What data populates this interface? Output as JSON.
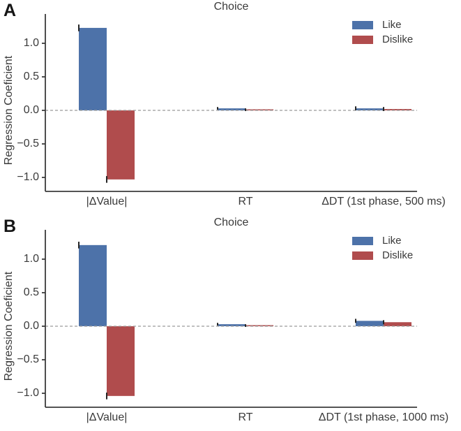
{
  "figure": {
    "background_color": "#ffffff",
    "text_color": "#3a3a3a",
    "axis_color": "#3b3b3b",
    "zero_line_color": "#9b9b9b",
    "error_bar_color": "#262626",
    "legend": {
      "position": "upper right",
      "frame": false,
      "items": [
        {
          "label": "Like",
          "color": "#4d72a9"
        },
        {
          "label": "Dislike",
          "color": "#b04c4d"
        }
      ]
    }
  },
  "chart_data": [
    {
      "type": "bar",
      "panel_label": "A",
      "title": "Choice",
      "xlabel": "",
      "ylabel": "Regression Coeficient",
      "ylim": [
        -1.2,
        1.45
      ],
      "yticks": [
        1.0,
        0.5,
        0.0,
        -0.5,
        -1.0
      ],
      "ytick_labels": [
        "1.0",
        "0.5",
        "0.0",
        "−0.5",
        "−1.0"
      ],
      "categories": [
        "|ΔValue|",
        "RT",
        "ΔDT (1st phase, 500 ms)"
      ],
      "zero_line_dashed": true,
      "grid": false,
      "series": [
        {
          "name": "Like",
          "color": "#4d72a9",
          "values": [
            1.23,
            0.03,
            0.03
          ],
          "errors": [
            0.05,
            0.02,
            0.03
          ]
        },
        {
          "name": "Dislike",
          "color": "#b04c4d",
          "values": [
            -1.03,
            0.01,
            0.02
          ],
          "errors": [
            0.05,
            0.02,
            0.03
          ]
        }
      ]
    },
    {
      "type": "bar",
      "panel_label": "B",
      "title": "Choice",
      "xlabel": "",
      "ylabel": "Regression Coeficient",
      "ylim": [
        -1.2,
        1.45
      ],
      "yticks": [
        1.0,
        0.5,
        0.0,
        -0.5,
        -1.0
      ],
      "ytick_labels": [
        "1.0",
        "0.5",
        "0.0",
        "−0.5",
        "−1.0"
      ],
      "categories": [
        "|ΔValue|",
        "RT",
        "ΔDT (1st phase, 1000 ms)"
      ],
      "zero_line_dashed": true,
      "grid": false,
      "series": [
        {
          "name": "Like",
          "color": "#4d72a9",
          "values": [
            1.21,
            0.03,
            0.08
          ],
          "errors": [
            0.05,
            0.02,
            0.03
          ]
        },
        {
          "name": "Dislike",
          "color": "#b04c4d",
          "values": [
            -1.04,
            0.01,
            0.06
          ],
          "errors": [
            0.05,
            0.02,
            0.03
          ]
        }
      ]
    }
  ]
}
